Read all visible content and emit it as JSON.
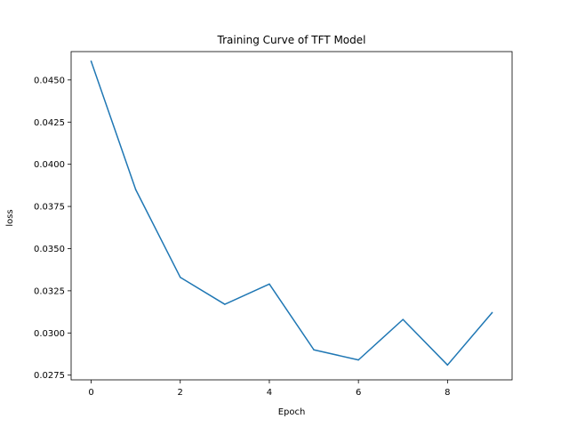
{
  "chart_data": {
    "type": "line",
    "title": "Training Curve of TFT Model",
    "xlabel": "Epoch",
    "ylabel": "loss",
    "xlim": [
      -0.45,
      9.45
    ],
    "ylim": [
      0.02722,
      0.04668
    ],
    "x_ticks": [
      0,
      2,
      4,
      6,
      8
    ],
    "x_tick_labels": [
      "0",
      "2",
      "4",
      "6",
      "8"
    ],
    "y_ticks": [
      0.0275,
      0.03,
      0.0325,
      0.035,
      0.0375,
      0.04,
      0.0425,
      0.045
    ],
    "y_tick_labels": [
      "0.0275",
      "0.0300",
      "0.0325",
      "0.0350",
      "0.0375",
      "0.0400",
      "0.0425",
      "0.0450"
    ],
    "grid": false,
    "legend": "none",
    "series": [
      {
        "color": "#1f77b4",
        "x": [
          0,
          1,
          2,
          3,
          4,
          5,
          6,
          7,
          8,
          9
        ],
        "values": [
          0.0461,
          0.0385,
          0.0333,
          0.0317,
          0.0329,
          0.029,
          0.0284,
          0.0308,
          0.0281,
          0.0312
        ]
      }
    ]
  }
}
